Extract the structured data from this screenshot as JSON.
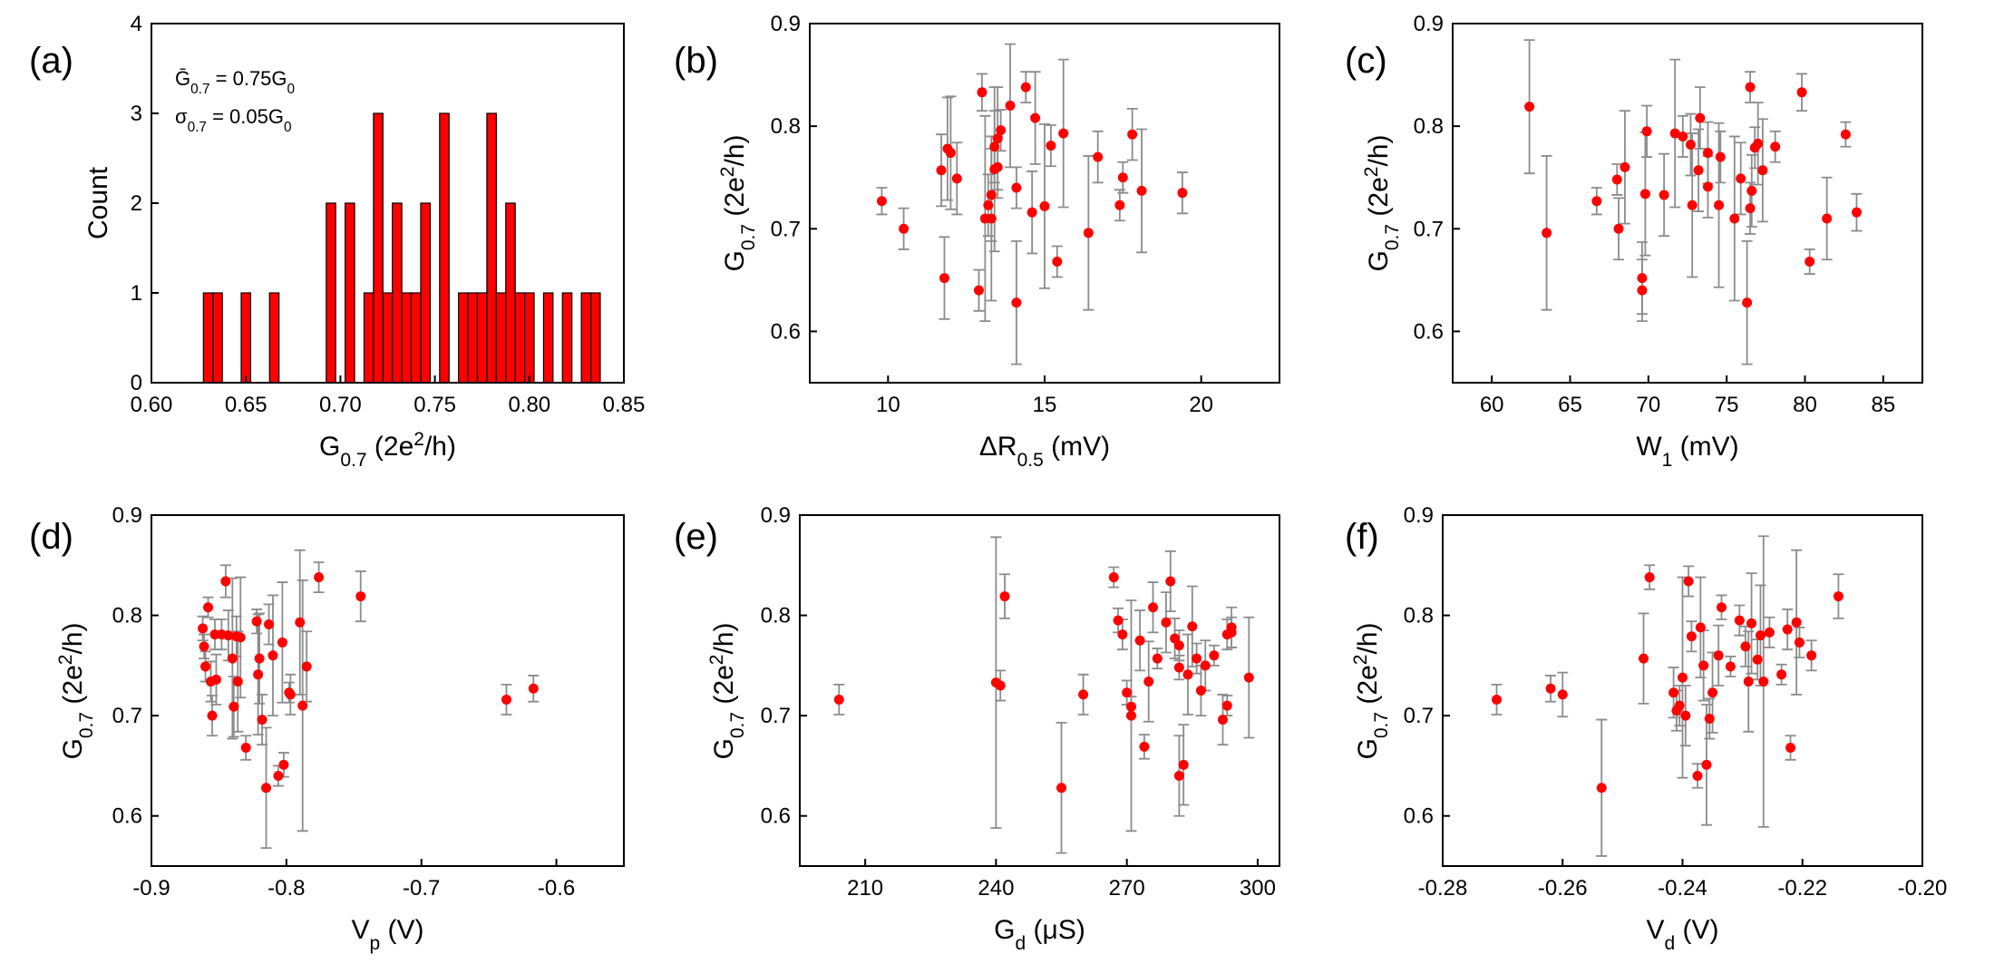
{
  "colors": {
    "marker": "#ff0000",
    "bar": "#ff0000",
    "errorbar": "#8c8c8c",
    "axis": "#000000"
  },
  "chart_data": [
    {
      "id": "a",
      "type": "bar",
      "panel_label": "(a)",
      "xlabel": {
        "main": "G",
        "sub": "0.7",
        "post": " (2e",
        "sup": "2",
        "post2": "/h)"
      },
      "ylabel": "Count",
      "xlim": [
        0.6,
        0.85
      ],
      "ylim": [
        0,
        4
      ],
      "xticks": [
        0.6,
        0.65,
        0.7,
        0.75,
        0.8,
        0.85
      ],
      "xtick_labels": [
        "0.60",
        "0.65",
        "0.70",
        "0.75",
        "0.80",
        "0.85"
      ],
      "yticks": [
        0,
        1,
        2,
        3,
        4
      ],
      "ytick_labels": [
        "0",
        "1",
        "2",
        "3",
        "4"
      ],
      "bin_width": 0.005,
      "bins": [
        [
          0.63,
          1
        ],
        [
          0.635,
          1
        ],
        [
          0.65,
          1
        ],
        [
          0.665,
          1
        ],
        [
          0.695,
          2
        ],
        [
          0.705,
          2
        ],
        [
          0.715,
          1
        ],
        [
          0.72,
          3
        ],
        [
          0.725,
          1
        ],
        [
          0.73,
          2
        ],
        [
          0.735,
          1
        ],
        [
          0.74,
          1
        ],
        [
          0.745,
          2
        ],
        [
          0.755,
          3
        ],
        [
          0.765,
          1
        ],
        [
          0.77,
          1
        ],
        [
          0.775,
          1
        ],
        [
          0.78,
          3
        ],
        [
          0.785,
          1
        ],
        [
          0.79,
          2
        ],
        [
          0.795,
          1
        ],
        [
          0.8,
          1
        ],
        [
          0.81,
          1
        ],
        [
          0.82,
          1
        ],
        [
          0.83,
          1
        ],
        [
          0.835,
          1
        ]
      ],
      "annotations": [
        {
          "main": "Ḡ",
          "sub": "0.7",
          "rest": " = 0.75G",
          "sub2": "0"
        },
        {
          "main": "σ",
          "sub": "0.7",
          "rest": " = 0.05G",
          "sub2": "0"
        }
      ]
    },
    {
      "id": "b",
      "type": "scatter",
      "panel_label": "(b)",
      "xlabel": {
        "main": "ΔR",
        "sub": "0.5",
        "post": " (mV)"
      },
      "ylabel": {
        "main": "G",
        "sub": "0.7",
        "post": " (2e",
        "sup": "2",
        "post2": "/h)"
      },
      "xlim": [
        7.5,
        22.5
      ],
      "ylim": [
        0.55,
        0.9
      ],
      "xticks": [
        10,
        15,
        20
      ],
      "xtick_labels": [
        "10",
        "15",
        "20"
      ],
      "yticks": [
        0.6,
        0.7,
        0.8,
        0.9
      ],
      "ytick_labels": [
        "0.6",
        "0.7",
        "0.8",
        "0.9"
      ],
      "points": [
        [
          9.8,
          0.727,
          0.013
        ],
        [
          10.5,
          0.7,
          0.02
        ],
        [
          11.7,
          0.757,
          0.035
        ],
        [
          11.8,
          0.652,
          0.04
        ],
        [
          11.9,
          0.778,
          0.05
        ],
        [
          12.0,
          0.774,
          0.055
        ],
        [
          12.2,
          0.749,
          0.035
        ],
        [
          12.9,
          0.64,
          0.02
        ],
        [
          13.0,
          0.833,
          0.018
        ],
        [
          13.1,
          0.71,
          0.1
        ],
        [
          13.2,
          0.723,
          0.03
        ],
        [
          13.3,
          0.733,
          0.045
        ],
        [
          13.3,
          0.71,
          0.08
        ],
        [
          13.4,
          0.758,
          0.08
        ],
        [
          13.4,
          0.78,
          0.035
        ],
        [
          13.5,
          0.788,
          0.05
        ],
        [
          13.5,
          0.76,
          0.03
        ],
        [
          13.6,
          0.796,
          0.02
        ],
        [
          13.9,
          0.82,
          0.06
        ],
        [
          14.1,
          0.74,
          0.02
        ],
        [
          14.1,
          0.628,
          0.06
        ],
        [
          14.4,
          0.838,
          0.015
        ],
        [
          14.6,
          0.716,
          0.04
        ],
        [
          14.7,
          0.808,
          0.045
        ],
        [
          15.0,
          0.722,
          0.08
        ],
        [
          15.2,
          0.781,
          0.02
        ],
        [
          15.4,
          0.668,
          0.015
        ],
        [
          15.6,
          0.793,
          0.072
        ],
        [
          16.4,
          0.696,
          0.075
        ],
        [
          16.7,
          0.77,
          0.025
        ],
        [
          17.4,
          0.723,
          0.015
        ],
        [
          17.5,
          0.75,
          0.015
        ],
        [
          17.8,
          0.792,
          0.025
        ],
        [
          18.1,
          0.737,
          0.06
        ],
        [
          19.4,
          0.735,
          0.02
        ]
      ]
    },
    {
      "id": "c",
      "type": "scatter",
      "panel_label": "(c)",
      "xlabel": {
        "main": "W",
        "sub": "1",
        "post": " (mV)"
      },
      "ylabel": {
        "main": "G",
        "sub": "0.7",
        "post": " (2e",
        "sup": "2",
        "post2": "/h)"
      },
      "xlim": [
        57.5,
        87.5
      ],
      "ylim": [
        0.55,
        0.9
      ],
      "xticks": [
        60,
        65,
        70,
        75,
        80,
        85
      ],
      "xtick_labels": [
        "60",
        "65",
        "70",
        "75",
        "80",
        "85"
      ],
      "yticks": [
        0.6,
        0.7,
        0.8,
        0.9
      ],
      "ytick_labels": [
        "0.6",
        "0.7",
        "0.8",
        "0.9"
      ],
      "points": [
        [
          62.4,
          0.819,
          0.065
        ],
        [
          63.5,
          0.696,
          0.075
        ],
        [
          66.7,
          0.727,
          0.013
        ],
        [
          68.0,
          0.748,
          0.015
        ],
        [
          68.1,
          0.7,
          0.03
        ],
        [
          68.5,
          0.76,
          0.055
        ],
        [
          69.6,
          0.652,
          0.035
        ],
        [
          69.6,
          0.64,
          0.03
        ],
        [
          69.8,
          0.734,
          0.06
        ],
        [
          69.9,
          0.795,
          0.025
        ],
        [
          71.0,
          0.733,
          0.04
        ],
        [
          71.7,
          0.793,
          0.072
        ],
        [
          72.2,
          0.79,
          0.02
        ],
        [
          72.7,
          0.782,
          0.03
        ],
        [
          72.8,
          0.723,
          0.07
        ],
        [
          73.2,
          0.757,
          0.04
        ],
        [
          73.3,
          0.808,
          0.03
        ],
        [
          73.8,
          0.741,
          0.03
        ],
        [
          73.8,
          0.774,
          0.03
        ],
        [
          74.5,
          0.723,
          0.08
        ],
        [
          74.6,
          0.77,
          0.025
        ],
        [
          75.5,
          0.71,
          0.08
        ],
        [
          75.9,
          0.749,
          0.035
        ],
        [
          76.3,
          0.628,
          0.06
        ],
        [
          76.5,
          0.838,
          0.015
        ],
        [
          76.5,
          0.72,
          0.025
        ],
        [
          76.6,
          0.737,
          0.035
        ],
        [
          76.8,
          0.779,
          0.02
        ],
        [
          77.0,
          0.783,
          0.04
        ],
        [
          77.3,
          0.757,
          0.05
        ],
        [
          78.1,
          0.78,
          0.015
        ],
        [
          79.8,
          0.833,
          0.018
        ],
        [
          80.3,
          0.668,
          0.012
        ],
        [
          81.4,
          0.71,
          0.04
        ],
        [
          82.6,
          0.792,
          0.012
        ],
        [
          83.3,
          0.716,
          0.018
        ]
      ]
    },
    {
      "id": "d",
      "type": "scatter",
      "panel_label": "(d)",
      "xlabel": {
        "main": "V",
        "sub": "p",
        "post": " (V)"
      },
      "ylabel": {
        "main": "G",
        "sub": "0.7",
        "post": " (2e",
        "sup": "2",
        "post2": "/h)"
      },
      "xlim": [
        -0.9,
        -0.55
      ],
      "ylim": [
        0.55,
        0.9
      ],
      "xticks": [
        -0.9,
        -0.8,
        -0.7,
        -0.6
      ],
      "xtick_labels": [
        "-0.9",
        "-0.8",
        "-0.7",
        "-0.6"
      ],
      "yticks": [
        0.6,
        0.7,
        0.8,
        0.9
      ],
      "ytick_labels": [
        "0.6",
        "0.7",
        "0.8",
        "0.9"
      ],
      "points": [
        [
          -0.862,
          0.787,
          0.012
        ],
        [
          -0.861,
          0.769,
          0.012
        ],
        [
          -0.86,
          0.749,
          0.015
        ],
        [
          -0.858,
          0.808,
          0.01
        ],
        [
          -0.856,
          0.734,
          0.02
        ],
        [
          -0.855,
          0.7,
          0.02
        ],
        [
          -0.853,
          0.781,
          0.015
        ],
        [
          -0.852,
          0.736,
          0.025
        ],
        [
          -0.848,
          0.781,
          0.015
        ],
        [
          -0.845,
          0.834,
          0.016
        ],
        [
          -0.843,
          0.78,
          0.025
        ],
        [
          -0.84,
          0.757,
          0.08
        ],
        [
          -0.839,
          0.709,
          0.03
        ],
        [
          -0.837,
          0.779,
          0.02
        ],
        [
          -0.836,
          0.734,
          0.05
        ],
        [
          -0.834,
          0.778,
          0.06
        ],
        [
          -0.83,
          0.668,
          0.012
        ],
        [
          -0.822,
          0.794,
          0.012
        ],
        [
          -0.821,
          0.741,
          0.06
        ],
        [
          -0.82,
          0.757,
          0.045
        ],
        [
          -0.818,
          0.696,
          0.025
        ],
        [
          -0.815,
          0.628,
          0.06
        ],
        [
          -0.813,
          0.791,
          0.02
        ],
        [
          -0.81,
          0.76,
          0.06
        ],
        [
          -0.806,
          0.64,
          0.01
        ],
        [
          -0.803,
          0.773,
          0.06
        ],
        [
          -0.802,
          0.651,
          0.012
        ],
        [
          -0.798,
          0.723,
          0.01
        ],
        [
          -0.797,
          0.721,
          0.02
        ],
        [
          -0.79,
          0.793,
          0.072
        ],
        [
          -0.788,
          0.71,
          0.125
        ],
        [
          -0.785,
          0.749,
          0.035
        ],
        [
          -0.776,
          0.838,
          0.015
        ],
        [
          -0.745,
          0.819,
          0.025
        ],
        [
          -0.637,
          0.716,
          0.015
        ],
        [
          -0.617,
          0.727,
          0.013
        ]
      ]
    },
    {
      "id": "e",
      "type": "scatter",
      "panel_label": "(e)",
      "xlabel": {
        "main": "G",
        "sub": "d",
        "post": " (μS)"
      },
      "ylabel": {
        "main": "G",
        "sub": "0.7",
        "post": " (2e",
        "sup": "2",
        "post2": "/h)"
      },
      "xlim": [
        195,
        305
      ],
      "ylim": [
        0.55,
        0.9
      ],
      "xticks": [
        210,
        240,
        270,
        300
      ],
      "xtick_labels": [
        "210",
        "240",
        "270",
        "300"
      ],
      "yticks": [
        0.6,
        0.7,
        0.8,
        0.9
      ],
      "ytick_labels": [
        "0.6",
        "0.7",
        "0.8",
        "0.9"
      ],
      "points": [
        [
          204,
          0.716,
          0.015
        ],
        [
          240,
          0.733,
          0.145
        ],
        [
          241,
          0.73,
          0.015
        ],
        [
          242,
          0.819,
          0.022
        ],
        [
          255,
          0.628,
          0.065
        ],
        [
          260,
          0.721,
          0.02
        ],
        [
          267,
          0.838,
          0.01
        ],
        [
          268,
          0.795,
          0.012
        ],
        [
          269,
          0.781,
          0.015
        ],
        [
          270,
          0.723,
          0.012
        ],
        [
          271,
          0.709,
          0.01
        ],
        [
          271,
          0.7,
          0.115
        ],
        [
          273,
          0.775,
          0.03
        ],
        [
          274,
          0.669,
          0.012
        ],
        [
          275,
          0.734,
          0.04
        ],
        [
          276,
          0.808,
          0.025
        ],
        [
          277,
          0.757,
          0.01
        ],
        [
          279,
          0.793,
          0.03
        ],
        [
          280,
          0.834,
          0.03
        ],
        [
          281,
          0.777,
          0.02
        ],
        [
          282,
          0.748,
          0.012
        ],
        [
          282,
          0.77,
          0.015
        ],
        [
          282,
          0.64,
          0.04
        ],
        [
          283,
          0.651,
          0.04
        ],
        [
          284,
          0.741,
          0.04
        ],
        [
          285,
          0.789,
          0.04
        ],
        [
          286,
          0.757,
          0.015
        ],
        [
          287,
          0.725,
          0.025
        ],
        [
          288,
          0.75,
          0.025
        ],
        [
          290,
          0.76,
          0.01
        ],
        [
          292,
          0.696,
          0.025
        ],
        [
          293,
          0.71,
          0.01
        ],
        [
          293,
          0.781,
          0.015
        ],
        [
          294,
          0.783,
          0.015
        ],
        [
          294,
          0.788,
          0.02
        ],
        [
          298,
          0.738,
          0.06
        ]
      ]
    },
    {
      "id": "f",
      "type": "scatter",
      "panel_label": "(f)",
      "xlabel": {
        "main": "V",
        "sub": "d",
        "post": " (V)"
      },
      "ylabel": {
        "main": "G",
        "sub": "0.7",
        "post": " (2e",
        "sup": "2",
        "post2": "/h)"
      },
      "xlim": [
        -0.28,
        -0.2
      ],
      "ylim": [
        0.55,
        0.9
      ],
      "xticks": [
        -0.28,
        -0.26,
        -0.24,
        -0.22,
        -0.2
      ],
      "xtick_labels": [
        "-0.28",
        "-0.26",
        "-0.24",
        "-0.22",
        "-0.20"
      ],
      "yticks": [
        0.6,
        0.7,
        0.8,
        0.9
      ],
      "ytick_labels": [
        "0.6",
        "0.7",
        "0.8",
        "0.9"
      ],
      "points": [
        [
          -0.271,
          0.716,
          0.015
        ],
        [
          -0.262,
          0.727,
          0.013
        ],
        [
          -0.26,
          0.721,
          0.022
        ],
        [
          -0.2535,
          0.628,
          0.068
        ],
        [
          -0.2465,
          0.757,
          0.045
        ],
        [
          -0.2455,
          0.838,
          0.012
        ],
        [
          -0.2415,
          0.723,
          0.025
        ],
        [
          -0.241,
          0.705,
          0.02
        ],
        [
          -0.2405,
          0.71,
          0.02
        ],
        [
          -0.24,
          0.738,
          0.1
        ],
        [
          -0.2395,
          0.7,
          0.03
        ],
        [
          -0.239,
          0.834,
          0.015
        ],
        [
          -0.2385,
          0.779,
          0.015
        ],
        [
          -0.2375,
          0.64,
          0.012
        ],
        [
          -0.237,
          0.788,
          0.05
        ],
        [
          -0.2365,
          0.75,
          0.035
        ],
        [
          -0.236,
          0.651,
          0.06
        ],
        [
          -0.2355,
          0.697,
          0.02
        ],
        [
          -0.235,
          0.723,
          0.04
        ],
        [
          -0.234,
          0.76,
          0.03
        ],
        [
          -0.2335,
          0.808,
          0.012
        ],
        [
          -0.232,
          0.749,
          0.01
        ],
        [
          -0.2305,
          0.795,
          0.015
        ],
        [
          -0.2295,
          0.769,
          0.02
        ],
        [
          -0.229,
          0.734,
          0.05
        ],
        [
          -0.2285,
          0.792,
          0.05
        ],
        [
          -0.2275,
          0.756,
          0.02
        ],
        [
          -0.227,
          0.78,
          0.05
        ],
        [
          -0.2265,
          0.734,
          0.145
        ],
        [
          -0.2255,
          0.783,
          0.015
        ],
        [
          -0.2235,
          0.741,
          0.01
        ],
        [
          -0.2225,
          0.786,
          0.02
        ],
        [
          -0.222,
          0.668,
          0.012
        ],
        [
          -0.221,
          0.793,
          0.072
        ],
        [
          -0.2205,
          0.773,
          0.015
        ],
        [
          -0.2185,
          0.76,
          0.015
        ],
        [
          -0.214,
          0.819,
          0.022
        ]
      ]
    }
  ]
}
